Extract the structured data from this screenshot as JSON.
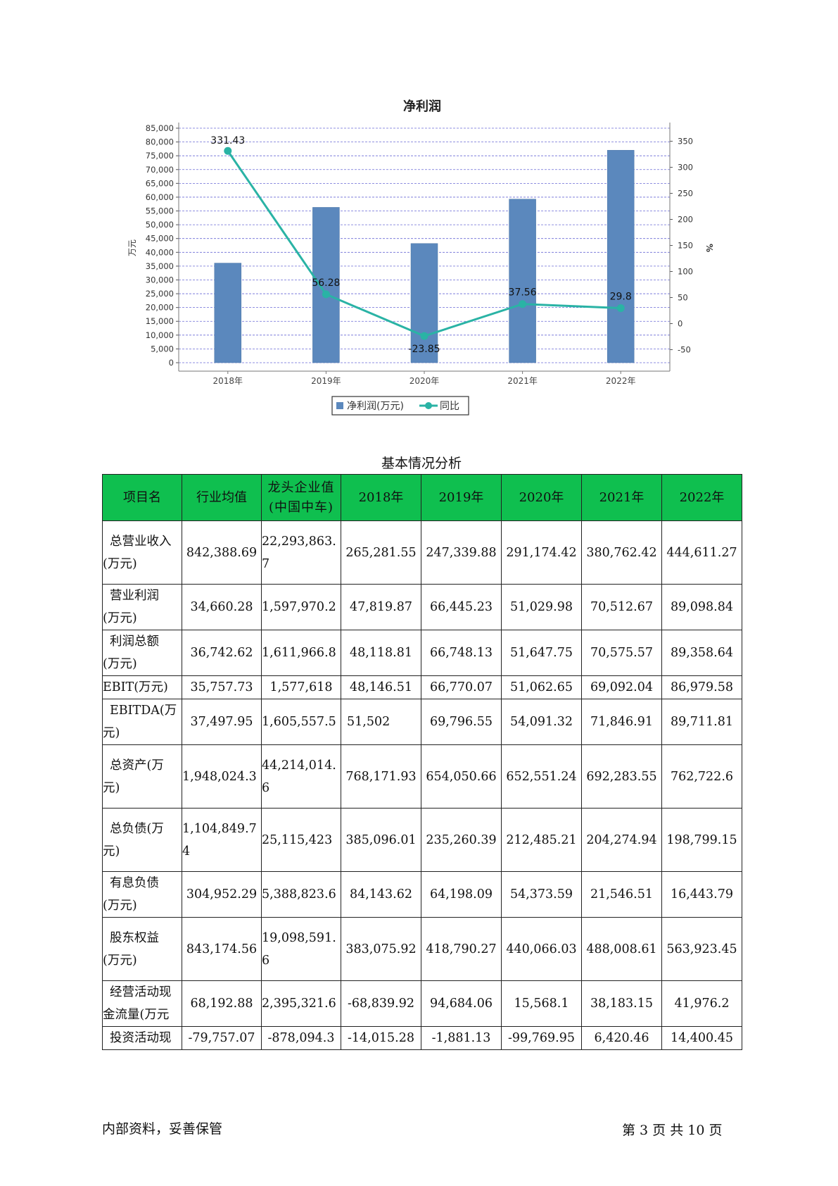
{
  "chart_data": {
    "type": "bar",
    "title": "净利润",
    "ylabel": "万元",
    "y2label": "%",
    "categories": [
      "2018年",
      "2019年",
      "2020年",
      "2021年",
      "2022年"
    ],
    "series": [
      {
        "name": "净利润(万元)",
        "type": "bar",
        "axis": "left",
        "color": "#5b88bd",
        "values": [
          36100,
          56300,
          43200,
          59300,
          77000
        ]
      },
      {
        "name": "同比",
        "type": "line",
        "axis": "right",
        "color": "#2ab3a5",
        "values": [
          331.43,
          56.28,
          -23.85,
          37.56,
          29.8
        ],
        "labels": [
          "331.43",
          "56.28",
          "-23.85",
          "37.56",
          "29.8"
        ]
      }
    ],
    "ylim": [
      0,
      85000
    ],
    "yticks": [
      "0",
      "5,000",
      "10,000",
      "15,000",
      "20,000",
      "25,000",
      "30,000",
      "35,000",
      "40,000",
      "45,000",
      "50,000",
      "55,000",
      "60,000",
      "65,000",
      "70,000",
      "75,000",
      "80,000",
      "85,000"
    ],
    "y2lim": [
      -75,
      375
    ],
    "y2ticks": [
      "-50",
      "0",
      "50",
      "100",
      "150",
      "200",
      "250",
      "300",
      "350"
    ],
    "grid": true,
    "legend_position": "bottom-center"
  },
  "table": {
    "title": "基本情况分析",
    "headers": [
      "项目名",
      "行业均值",
      "龙头企业值(中国中车)",
      "2018年",
      "2019年",
      "2020年",
      "2021年",
      "2022年"
    ],
    "rows": [
      {
        "name": [
          "总营业收入",
          "(万元)"
        ],
        "cells": [
          "842,388.69",
          "22,293,863.7",
          "265,281.55",
          "247,339.88",
          "291,174.42",
          "380,762.42",
          "444,611.27"
        ]
      },
      {
        "name": [
          "营业利润",
          "(万元)"
        ],
        "cells": [
          "34,660.28",
          "1,597,970.2",
          "47,819.87",
          "66,445.23",
          "51,029.98",
          "70,512.67",
          "89,098.84"
        ]
      },
      {
        "name": [
          "利润总额",
          "(万元)"
        ],
        "cells": [
          "36,742.62",
          "1,611,966.8",
          "48,118.81",
          "66,748.13",
          "51,647.75",
          "70,575.57",
          "89,358.64"
        ]
      },
      {
        "name": [
          "EBIT(万元)"
        ],
        "cells": [
          "35,757.73",
          "1,577,618",
          "48,146.51",
          "66,770.07",
          "51,062.65",
          "69,092.04",
          "86,979.58"
        ]
      },
      {
        "name": [
          "EBITDA(万",
          "元)"
        ],
        "cells": [
          "37,497.95",
          "1,605,557.5",
          "51,502",
          "69,796.55",
          "54,091.32",
          "71,846.91",
          "89,711.81"
        ]
      },
      {
        "name": [
          "总资产(万",
          "元)"
        ],
        "cells": [
          "1,948,024.3",
          "44,214,014.6",
          "768,171.93",
          "654,050.66",
          "652,551.24",
          "692,283.55",
          "762,722.6"
        ]
      },
      {
        "name": [
          "总负债(万",
          "元)"
        ],
        "cells": [
          "1,104,849.74",
          "25,115,423",
          "385,096.01",
          "235,260.39",
          "212,485.21",
          "204,274.94",
          "198,799.15"
        ]
      },
      {
        "name": [
          "有息负债",
          "(万元)"
        ],
        "cells": [
          "304,952.29",
          "5,388,823.6",
          "84,143.62",
          "64,198.09",
          "54,373.59",
          "21,546.51",
          "16,443.79"
        ]
      },
      {
        "name": [
          "股东权益",
          "(万元)"
        ],
        "cells": [
          "843,174.56",
          "19,098,591.6",
          "383,075.92",
          "418,790.27",
          "440,066.03",
          "488,008.61",
          "563,923.45"
        ]
      },
      {
        "name": [
          "经营活动现",
          "金流量(万元"
        ],
        "cells": [
          "68,192.88",
          "2,395,321.6",
          "-68,839.92",
          "94,684.06",
          "15,568.1",
          "38,183.15",
          "41,976.2"
        ]
      },
      {
        "name": [
          "投资活动现"
        ],
        "cells": [
          "-79,757.07",
          "-878,094.3",
          "-14,015.28",
          "-1,881.13",
          "-99,769.95",
          "6,420.46",
          "14,400.45"
        ]
      }
    ]
  },
  "footer": {
    "left": "内部资料，妥善保管",
    "right": "第 3 页  共 10 页"
  }
}
